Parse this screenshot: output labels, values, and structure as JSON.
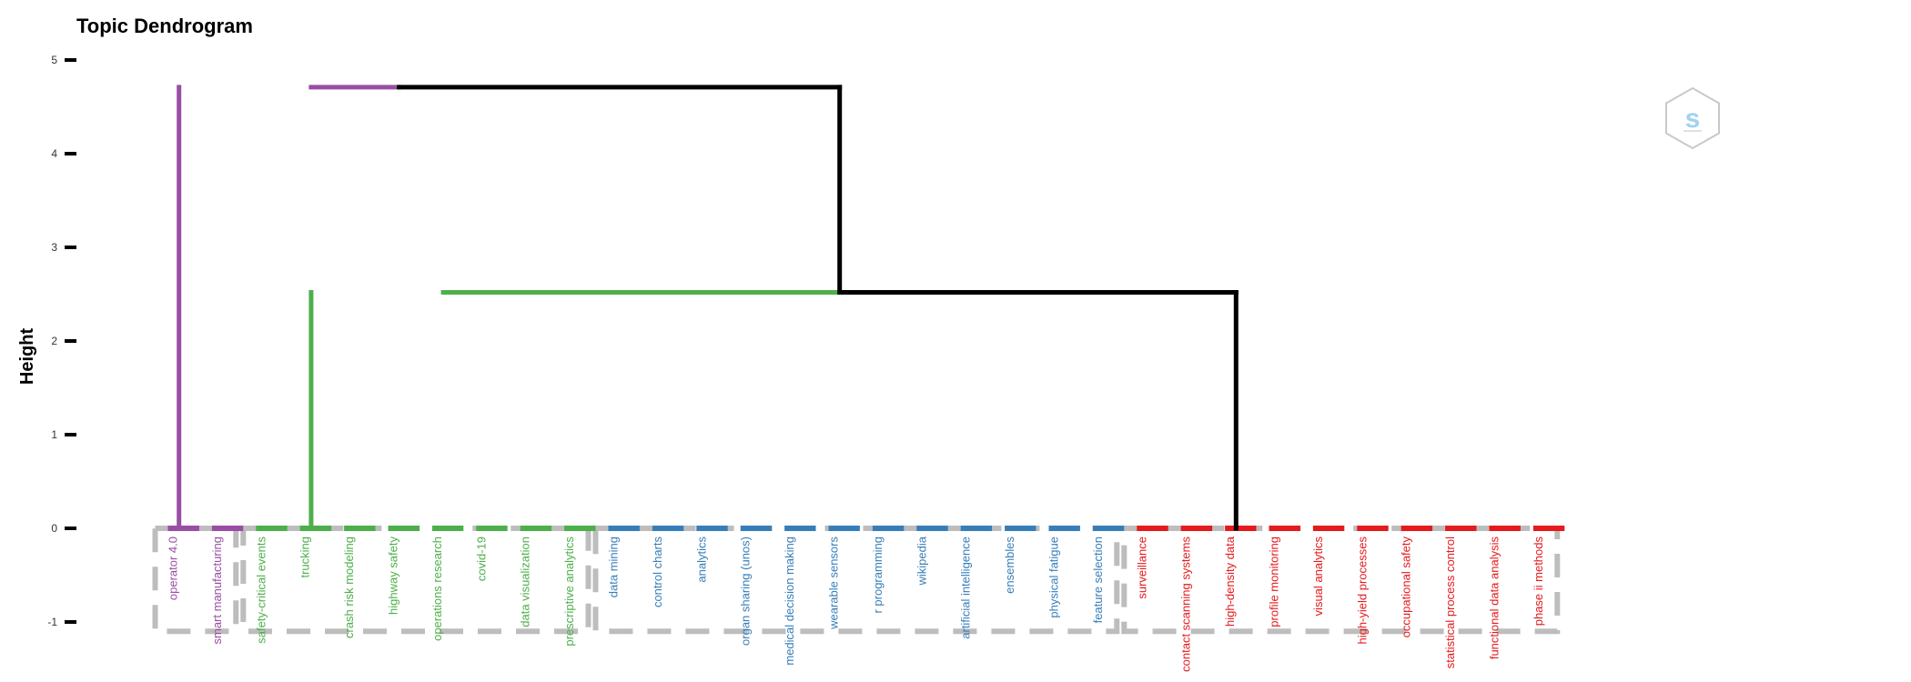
{
  "chart_data": {
    "type": "dendrogram",
    "title": "Topic Dendrogram",
    "ylabel": "Height",
    "ylim": [
      -1.1,
      5.0
    ],
    "yticks": [
      5,
      4,
      3,
      2,
      1,
      0,
      -1
    ],
    "leaves": [
      "operator 4.0",
      "smart manufacturing",
      "safety-critical events",
      "trucking",
      "crash risk modeling",
      "highway safety",
      "operations research",
      "covid-19",
      "data visualization",
      "prescriptive analytics",
      "data mining",
      "control charts",
      "analytics",
      "organ sharing (unos)",
      "medical decision making",
      "wearable sensors",
      "r programming",
      "wikipedia",
      "artificial intelligence",
      "ensembles",
      "physical fatigue",
      "feature selection",
      "surveillance",
      "contact scanning systems",
      "high-density data",
      "profile monitoring",
      "visual analytics",
      "high-yield processes",
      "occupational safety",
      "statistical process control",
      "functional data analysis",
      "phase ii methods"
    ],
    "clusters": [
      {
        "start": 0,
        "end": 1,
        "color": "#984ea3"
      },
      {
        "start": 2,
        "end": 9,
        "color": "#4daf4a"
      },
      {
        "start": 10,
        "end": 21,
        "color": "#377eb8"
      },
      {
        "start": 22,
        "end": 31,
        "color": "#e41a1c"
      }
    ],
    "merges": [
      {
        "left_x": 3.5,
        "right_x": 5.5,
        "height": 4.71,
        "color": "#984ea3"
      },
      {
        "left_x": 5.5,
        "right_x": 15.5,
        "height": 4.71,
        "color": "#000000"
      },
      {
        "left_x": 6.5,
        "right_x": 15.5,
        "height": 2.52,
        "color": "#4daf4a"
      },
      {
        "left_x": 15.5,
        "right_x": 24.5,
        "height": 2.52,
        "color": "#000000"
      }
    ],
    "stems": [
      {
        "x": 0.5,
        "from": 0,
        "to": 4.71,
        "color": "#984ea3"
      },
      {
        "x": 15.5,
        "from": 2.52,
        "to": 4.71,
        "color": "#000000"
      },
      {
        "x": 3.5,
        "from": 0,
        "to": 2.52,
        "color": "#4daf4a"
      },
      {
        "x": 24.5,
        "from": 0,
        "to": 2.52,
        "color": "#000000"
      }
    ],
    "grid": false,
    "legend": "none"
  }
}
